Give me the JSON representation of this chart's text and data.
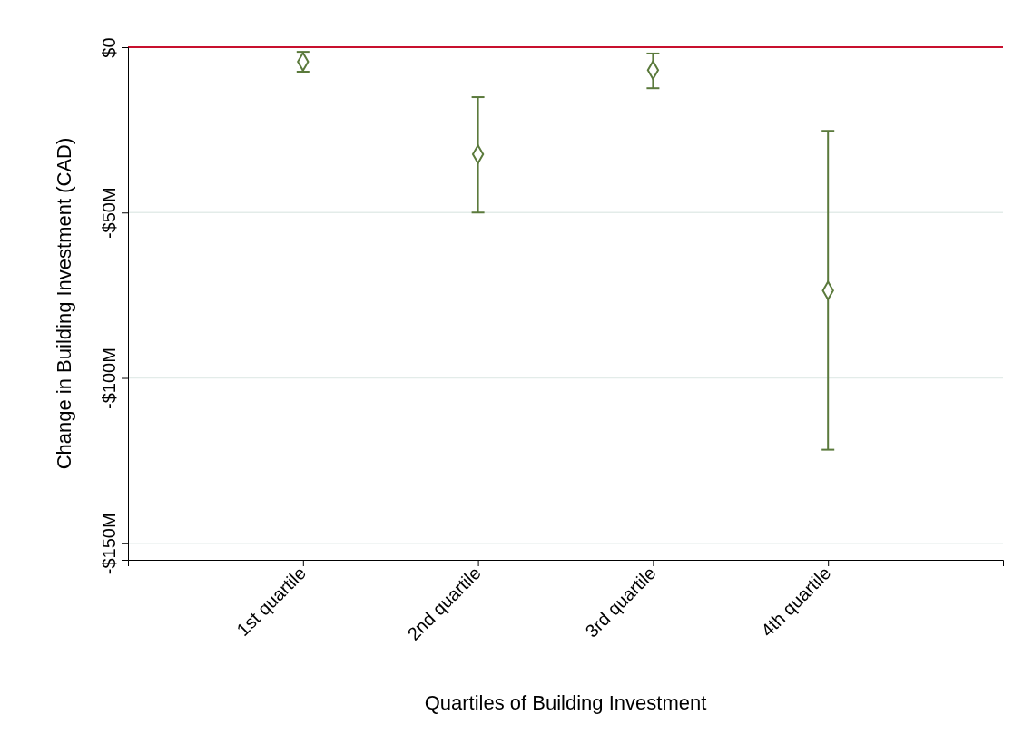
{
  "chart_data": {
    "type": "scatter",
    "xlabel": "Quartiles of Building Investment",
    "ylabel": "Change in Building Investment (CAD)",
    "categories": [
      "1st quartile",
      "2nd quartile",
      "3rd quartile",
      "4th quartile"
    ],
    "series": [
      {
        "color": "#5b7a3c",
        "values": [
          -4.4,
          -32.4,
          -6.9,
          -73.6
        ],
        "errors": [
          [
            -7.4,
            -1.4
          ],
          [
            -50,
            -15.1
          ],
          [
            -12.4,
            -1.9
          ],
          [
            -121.7,
            -25.3
          ]
        ]
      }
    ],
    "ylim": [
      -155,
      0
    ],
    "yticks": [
      {
        "value": 0,
        "label": "$0"
      },
      {
        "value": -50,
        "label": "-$50M"
      },
      {
        "value": -100,
        "label": "-$100M"
      },
      {
        "value": -150,
        "label": "-$150M"
      }
    ],
    "grid": "y",
    "marker": "diamond",
    "ref_lines": [
      {
        "axis": "y",
        "value": 0,
        "color": "#c8102e"
      }
    ]
  }
}
